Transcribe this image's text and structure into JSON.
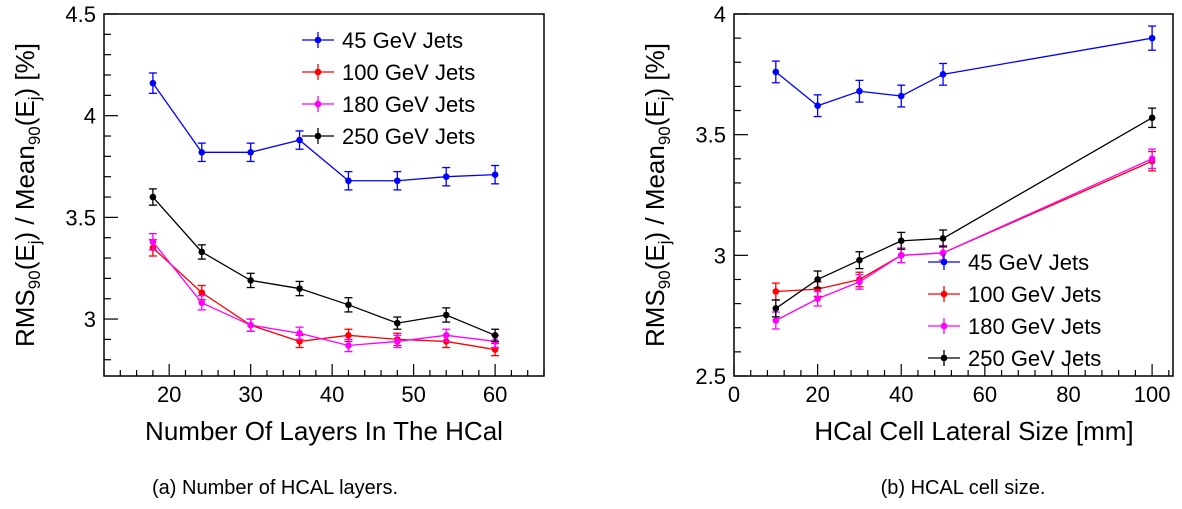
{
  "chart_data": [
    {
      "type": "line",
      "xlabel": "Number Of Layers In The HCal",
      "ylabel": {
        "pre": "RMS",
        "sub1": "90",
        "mid": "(E",
        "sub2": "j",
        "mid2": ") / Mean",
        "sub3": "90",
        "mid3": "(E",
        "sub4": "j",
        "post": ") [%]"
      },
      "xlim": [
        12,
        66
      ],
      "ylim": [
        2.72,
        4.5
      ],
      "xticks": [
        20,
        30,
        40,
        50,
        60
      ],
      "yticks": [
        3,
        3.5,
        4,
        4.5
      ],
      "yticklabels": [
        "3",
        "3.5",
        "4",
        "4.5"
      ],
      "legend_position": "top-right",
      "caption": "(a) Number of HCAL layers.",
      "series": [
        {
          "name": "45 GeV Jets",
          "color": "#0000ff",
          "x": [
            18,
            24,
            30,
            36,
            42,
            48,
            54,
            60
          ],
          "y": [
            4.16,
            3.82,
            3.82,
            3.88,
            3.68,
            3.68,
            3.7,
            3.71
          ],
          "err": [
            0.05,
            0.045,
            0.045,
            0.045,
            0.045,
            0.045,
            0.045,
            0.045
          ]
        },
        {
          "name": "100 GeV Jets",
          "color": "#ff0000",
          "x": [
            18,
            24,
            30,
            36,
            42,
            48,
            54,
            60
          ],
          "y": [
            3.35,
            3.13,
            2.97,
            2.89,
            2.92,
            2.9,
            2.89,
            2.85
          ],
          "err": [
            0.04,
            0.035,
            0.03,
            0.03,
            0.03,
            0.03,
            0.03,
            0.03
          ]
        },
        {
          "name": "180 GeV Jets",
          "color": "#ff00ff",
          "x": [
            18,
            24,
            30,
            36,
            42,
            48,
            54,
            60
          ],
          "y": [
            3.38,
            3.08,
            2.97,
            2.93,
            2.87,
            2.89,
            2.92,
            2.89
          ],
          "err": [
            0.04,
            0.035,
            0.03,
            0.03,
            0.03,
            0.03,
            0.03,
            0.03
          ]
        },
        {
          "name": "250 GeV Jets",
          "color": "#000000",
          "x": [
            18,
            24,
            30,
            36,
            42,
            48,
            54,
            60
          ],
          "y": [
            3.6,
            3.33,
            3.19,
            3.15,
            3.07,
            2.98,
            3.02,
            2.92
          ],
          "err": [
            0.04,
            0.035,
            0.035,
            0.035,
            0.035,
            0.03,
            0.035,
            0.03
          ]
        }
      ]
    },
    {
      "type": "line",
      "xlabel": "HCal Cell Lateral Size [mm]",
      "ylabel": {
        "pre": "RMS",
        "sub1": "90",
        "mid": "(E",
        "sub2": "j",
        "mid2": ") / Mean",
        "sub3": "90",
        "mid3": "(E",
        "sub4": "j",
        "post": ") [%]"
      },
      "xlim": [
        0,
        105
      ],
      "ylim": [
        2.5,
        4.0
      ],
      "xticks": [
        0,
        20,
        40,
        60,
        80,
        100
      ],
      "yticks": [
        2.5,
        3,
        3.5,
        4
      ],
      "yticklabels": [
        "2.5",
        "3",
        "3.5",
        "4"
      ],
      "legend_position": "bottom-right",
      "caption": "(b) HCAL cell size.",
      "series": [
        {
          "name": "45 GeV Jets",
          "color": "#0000ff",
          "x": [
            10,
            20,
            30,
            40,
            50,
            100
          ],
          "y": [
            3.76,
            3.62,
            3.68,
            3.66,
            3.75,
            3.9
          ],
          "err": [
            0.045,
            0.045,
            0.045,
            0.045,
            0.045,
            0.05
          ]
        },
        {
          "name": "100 GeV Jets",
          "color": "#ff0000",
          "x": [
            10,
            20,
            30,
            40,
            50,
            100
          ],
          "y": [
            2.85,
            2.86,
            2.9,
            3.0,
            3.01,
            3.39
          ],
          "err": [
            0.035,
            0.03,
            0.03,
            0.03,
            0.03,
            0.04
          ]
        },
        {
          "name": "180 GeV Jets",
          "color": "#ff00ff",
          "x": [
            10,
            20,
            30,
            40,
            50,
            100
          ],
          "y": [
            2.73,
            2.82,
            2.89,
            3.0,
            3.01,
            3.4
          ],
          "err": [
            0.035,
            0.03,
            0.03,
            0.03,
            0.03,
            0.04
          ]
        },
        {
          "name": "250 GeV Jets",
          "color": "#000000",
          "x": [
            10,
            20,
            30,
            40,
            50,
            100
          ],
          "y": [
            2.78,
            2.9,
            2.98,
            3.06,
            3.07,
            3.57
          ],
          "err": [
            0.035,
            0.035,
            0.035,
            0.035,
            0.035,
            0.04
          ]
        }
      ]
    }
  ]
}
